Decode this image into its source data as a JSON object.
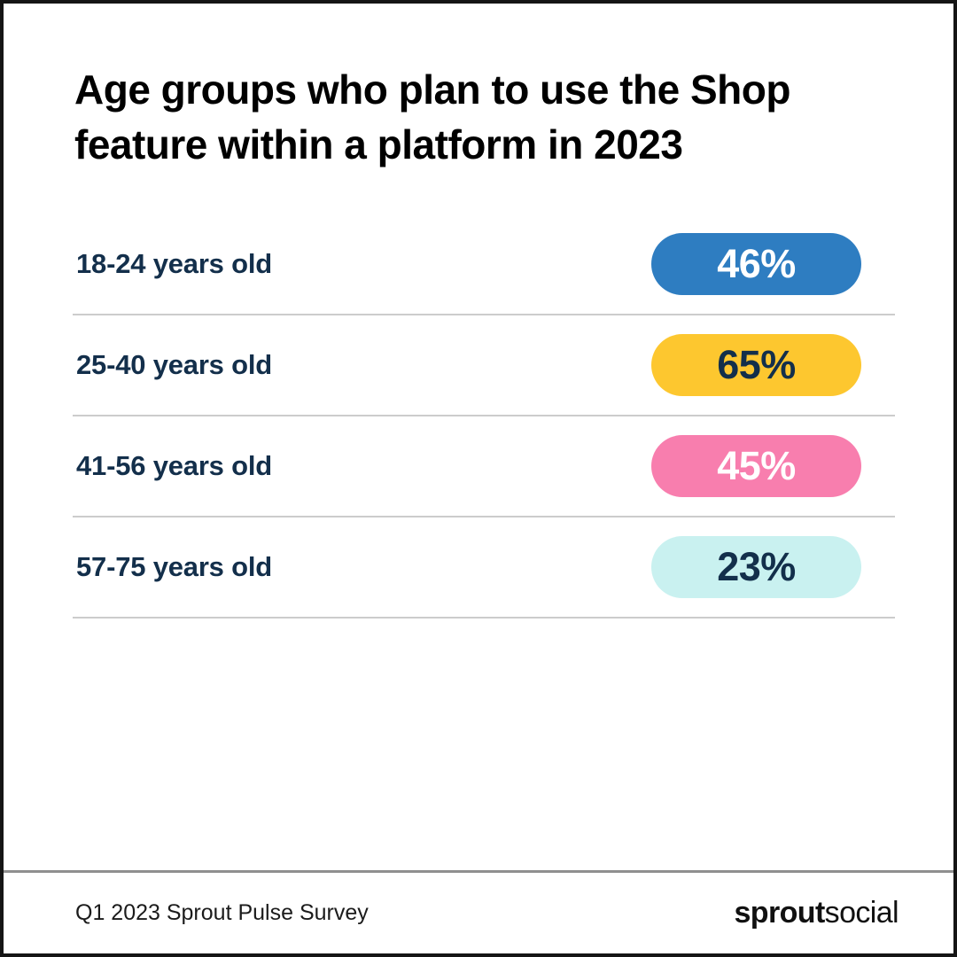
{
  "title": {
    "line1": "Age groups who plan to use the Shop",
    "line2": "feature within a platform in 2023"
  },
  "chart_data": {
    "type": "bar",
    "orientation": "horizontal",
    "title": "Age groups who plan to use the Shop feature within a platform in 2023",
    "categories": [
      "18-24 years old",
      "25-40 years old",
      "41-56 years old",
      "57-75 years old"
    ],
    "values": [
      46,
      65,
      45,
      23
    ],
    "unit": "%",
    "data_labels": [
      "46%",
      "65%",
      "45%",
      "23%"
    ],
    "bar_colors": [
      "#2E7DC1",
      "#FDC72F",
      "#F87EAE",
      "#C9F1F0"
    ],
    "legend": false,
    "grid": false,
    "source": "Q1 2023 Sprout Pulse Survey"
  },
  "rows": [
    {
      "label": "18-24 years old",
      "value_label": "46%",
      "pill_color": "#2E7DC1",
      "value_color": "#ffffff"
    },
    {
      "label": "25-40 years old",
      "value_label": "65%",
      "pill_color": "#FDC72F",
      "value_color": "#132F4B"
    },
    {
      "label": "41-56 years old",
      "value_label": "45%",
      "pill_color": "#F87EAE",
      "value_color": "#ffffff"
    },
    {
      "label": "57-75 years old",
      "value_label": "23%",
      "pill_color": "#C9F1F0",
      "value_color": "#132F4B"
    }
  ],
  "footer": {
    "source": "Q1 2023 Sprout Pulse Survey",
    "brand_bold": "sprout",
    "brand_light": "social"
  },
  "colors": {
    "frame_border": "#151515",
    "label_navy": "#132F4B",
    "row_divider": "#cccccc",
    "footer_divider": "#8f8f8f",
    "background": "#ffffff"
  }
}
